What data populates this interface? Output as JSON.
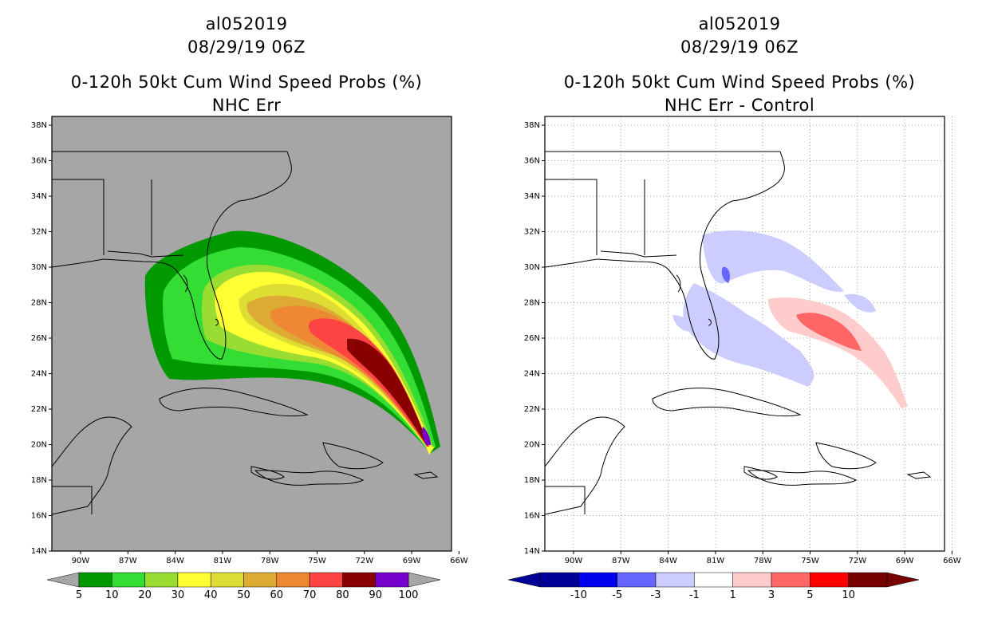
{
  "left": {
    "storm_id": "al052019",
    "datetime": "08/29/19 06Z",
    "title": "0-120h 50kt Cum Wind Speed Probs (%)",
    "subtitle": "NHC Err",
    "lat_labels": [
      "38N",
      "36N",
      "34N",
      "32N",
      "30N",
      "28N",
      "26N",
      "24N",
      "22N",
      "20N",
      "18N",
      "16N",
      "14N"
    ],
    "lon_labels": [
      "90W",
      "87W",
      "84W",
      "81W",
      "78W",
      "75W",
      "72W",
      "69W",
      "66W"
    ],
    "colorbar": {
      "colors": [
        "#009900",
        "#33dd33",
        "#99dd33",
        "#ffff33",
        "#dddd33",
        "#ddaa33",
        "#ee8833",
        "#ff4444",
        "#880000",
        "#7700cc"
      ],
      "labels": [
        "5",
        "10",
        "20",
        "30",
        "40",
        "50",
        "60",
        "70",
        "80",
        "90",
        "100"
      ]
    },
    "background": "#a6a6a6"
  },
  "right": {
    "storm_id": "al052019",
    "datetime": "08/29/19 06Z",
    "title": "0-120h 50kt Cum Wind Speed Probs (%)",
    "subtitle": "NHC Err - Control",
    "lat_labels": [
      "38N",
      "36N",
      "34N",
      "32N",
      "30N",
      "28N",
      "26N",
      "24N",
      "22N",
      "20N",
      "18N",
      "16N",
      "14N"
    ],
    "lon_labels": [
      "90W",
      "87W",
      "84W",
      "81W",
      "78W",
      "75W",
      "72W",
      "69W",
      "66W"
    ],
    "colorbar": {
      "colors": [
        "#000099",
        "#0000ee",
        "#6666ff",
        "#ccccff",
        "#ffffff",
        "#ffcccc",
        "#ff6666",
        "#ff0000",
        "#770000"
      ],
      "labels": [
        "-10",
        "-5",
        "-3",
        "-1",
        "1",
        "3",
        "5",
        "10"
      ]
    },
    "background": "#ffffff"
  }
}
